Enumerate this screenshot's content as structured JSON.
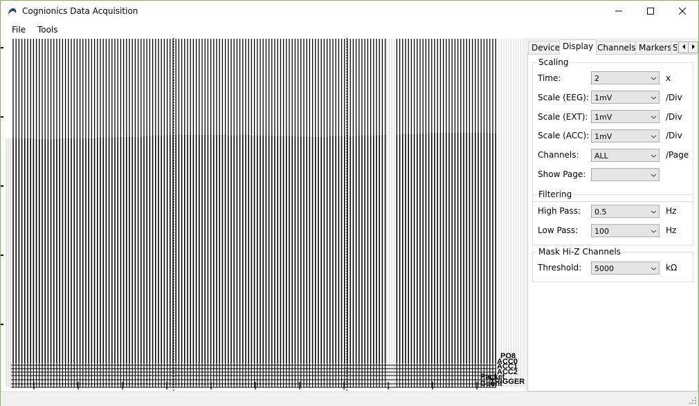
{
  "window": {
    "title": "Cognionics Data Acquisition"
  },
  "menu": {
    "file": "File",
    "tools": "Tools"
  },
  "tabs": [
    {
      "label": "Device"
    },
    {
      "label": "Display"
    },
    {
      "label": "Channels"
    },
    {
      "label": "Markers"
    },
    {
      "label": "S"
    }
  ],
  "scaling": {
    "title": "Scaling",
    "time": {
      "label": "Time:",
      "value": "2",
      "unit": "x"
    },
    "scale_eeg": {
      "label": "Scale (EEG):",
      "value": "1mV",
      "unit": "/Div"
    },
    "scale_ext": {
      "label": "Scale (EXT):",
      "value": "1mV",
      "unit": "/Div"
    },
    "scale_acc": {
      "label": "Scale (ACC):",
      "value": "1mV",
      "unit": "/Div"
    },
    "channels": {
      "label": "Channels:",
      "value": "ALL",
      "unit": "/Page"
    },
    "show_page": {
      "label": "Show Page:",
      "value": ""
    }
  },
  "filtering": {
    "title": "Filtering",
    "high_pass": {
      "label": "High Pass:",
      "value": "0.5",
      "unit": "Hz"
    },
    "low_pass": {
      "label": "Low Pass:",
      "value": "100",
      "unit": "Hz"
    }
  },
  "mask": {
    "title": "Mask Hi-Z Channels",
    "threshold": {
      "label": "Threshold:",
      "value": "5000",
      "unit": "kΩ"
    }
  },
  "plot": {
    "channel_labels": [
      "PO8",
      "ACC0",
      "ACC1",
      "ACC2",
      "Packet Count",
      "TRIGGER"
    ]
  }
}
